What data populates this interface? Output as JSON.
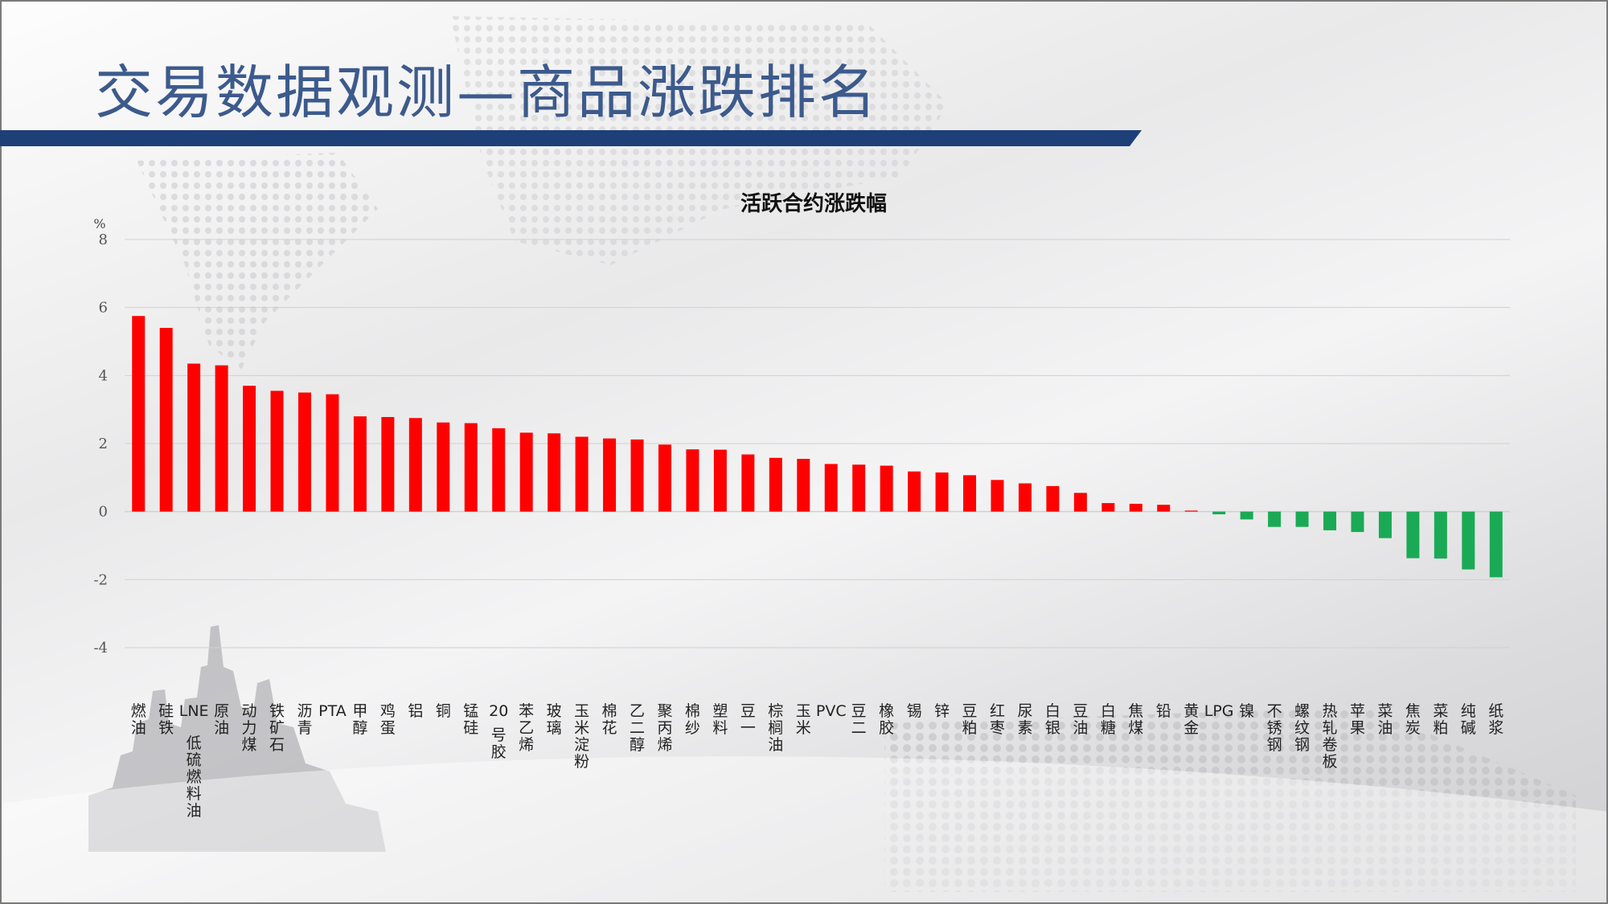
{
  "slide": {
    "title": "交易数据观测—商品涨跌排名"
  },
  "colors": {
    "title": "#3c5a8c",
    "header_bar": "#1f3f78",
    "up": "#ff0000",
    "down": "#1aaa55",
    "grid": "#d0d0d0"
  },
  "chart_data": {
    "type": "bar",
    "title": "活跃合约涨跌幅",
    "unit": "%",
    "xlabel": "",
    "ylabel": "",
    "ylim": [
      -4,
      8
    ],
    "yticks": [
      8,
      6,
      4,
      2,
      0,
      -2,
      -4
    ],
    "grid": true,
    "legend": "none",
    "categories": [
      "燃油",
      "硅铁",
      "LNE低硫燃料油",
      "原油",
      "动力煤",
      "铁矿石",
      "沥青",
      "PTA",
      "甲醇",
      "鸡蛋",
      "铝",
      "铜",
      "锰硅",
      "20号胶",
      "苯乙烯",
      "玻璃",
      "玉米淀粉",
      "棉花",
      "乙二醇",
      "聚丙烯",
      "棉纱",
      "塑料",
      "豆一",
      "棕榈油",
      "玉米",
      "PVC",
      "豆二",
      "橡胶",
      "锡",
      "锌",
      "豆粕",
      "红枣",
      "尿素",
      "白银",
      "豆油",
      "白糖",
      "焦煤",
      "铅",
      "黄金",
      "LPG",
      "镍",
      "不锈钢",
      "螺纹钢",
      "热轧卷板",
      "苹果",
      "菜油",
      "焦炭",
      "菜粕",
      "纯碱",
      "纸浆"
    ],
    "values": [
      5.75,
      5.4,
      4.35,
      4.3,
      3.7,
      3.55,
      3.5,
      3.45,
      2.8,
      2.78,
      2.75,
      2.62,
      2.6,
      2.45,
      2.32,
      2.3,
      2.2,
      2.15,
      2.12,
      1.97,
      1.83,
      1.82,
      1.68,
      1.58,
      1.55,
      1.4,
      1.38,
      1.35,
      1.18,
      1.15,
      1.07,
      0.93,
      0.83,
      0.75,
      0.55,
      0.25,
      0.23,
      0.2,
      0.03,
      -0.08,
      -0.23,
      -0.45,
      -0.45,
      -0.55,
      -0.6,
      -0.78,
      -1.37,
      -1.38,
      -1.7,
      -1.93
    ]
  }
}
